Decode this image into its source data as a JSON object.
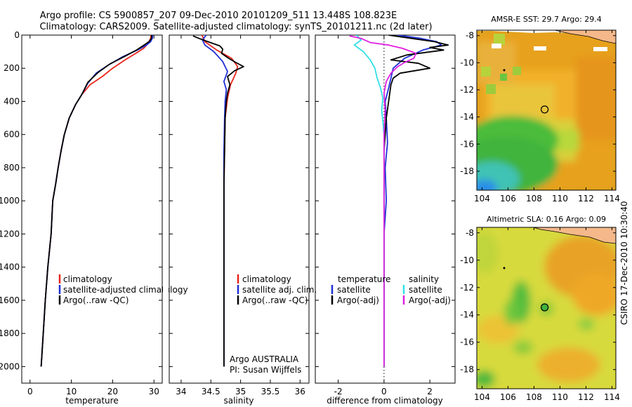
{
  "title": {
    "line1": "Argo profile: CS 5900857_207 09-Dec-2010 20101209_511 13.448S 108.823E",
    "line2": "Climatology: CARS2009. Satellite-adjusted climatology: synTS_20101211.nc (2d later)"
  },
  "side_label": "CSIRO 17-Dec-2010 10:30:40",
  "colors": {
    "climatology": "#e8251c",
    "satellite": "#1f2fd6",
    "argo": "#000000",
    "sat_salinity": "#2fe0e8",
    "argo_salinity": "#e020e0",
    "depth_marker": "#000000",
    "land": "#f5b88a"
  },
  "chart_data": [
    {
      "id": "temperature",
      "type": "line",
      "xlabel": "temperature",
      "ylabel": "",
      "xlim": [
        -2,
        32
      ],
      "ylim": [
        2100,
        0
      ],
      "xticks": [
        0,
        10,
        20,
        30
      ],
      "yticks": [
        0,
        200,
        400,
        600,
        800,
        1000,
        1200,
        1400,
        1600,
        1800,
        2000
      ],
      "legend": [
        "climatology",
        "satellite-adjusted climatology",
        "Argo(..raw -QC)"
      ],
      "series": [
        {
          "name": "climatology",
          "color": "#e8251c",
          "points": [
            [
              29.3,
              0
            ],
            [
              29.2,
              20
            ],
            [
              28.6,
              50
            ],
            [
              27.5,
              80
            ],
            [
              25.6,
              110
            ],
            [
              23,
              150
            ],
            [
              20,
              200
            ],
            [
              17.5,
              250
            ],
            [
              14.5,
              300
            ],
            [
              12.5,
              360
            ],
            [
              11,
              420
            ],
            [
              9.5,
              500
            ],
            [
              8.3,
              600
            ],
            [
              7.5,
              700
            ],
            [
              6.8,
              800
            ],
            [
              6.2,
              900
            ],
            [
              5.5,
              1000
            ],
            [
              5.1,
              1200
            ],
            [
              4.3,
              1400
            ],
            [
              3.7,
              1600
            ],
            [
              3.2,
              1800
            ],
            [
              2.7,
              2000
            ]
          ]
        },
        {
          "name": "satellite-adjusted climatology",
          "color": "#1f2fd6",
          "points": [
            [
              29.7,
              0
            ],
            [
              29.6,
              20
            ],
            [
              29.2,
              40
            ],
            [
              28.2,
              60
            ],
            [
              26,
              90
            ],
            [
              22.5,
              130
            ],
            [
              19,
              180
            ],
            [
              16,
              230
            ],
            [
              14,
              290
            ],
            [
              12.5,
              360
            ],
            [
              11,
              420
            ],
            [
              9.5,
              500
            ],
            [
              8.3,
              600
            ],
            [
              7.5,
              700
            ],
            [
              6.8,
              800
            ],
            [
              6.2,
              900
            ],
            [
              5.5,
              1000
            ],
            [
              5.1,
              1200
            ],
            [
              4.3,
              1400
            ],
            [
              3.7,
              1600
            ],
            [
              3.2,
              1800
            ],
            [
              2.7,
              2000
            ]
          ]
        },
        {
          "name": "Argo(..raw -QC)",
          "color": "#000000",
          "points": [
            [
              29.4,
              0
            ],
            [
              29.4,
              20
            ],
            [
              28.8,
              40
            ],
            [
              27.6,
              60
            ],
            [
              25.8,
              90
            ],
            [
              22.8,
              130
            ],
            [
              19.3,
              175
            ],
            [
              16.5,
              225
            ],
            [
              14,
              285
            ],
            [
              12.5,
              360
            ],
            [
              11,
              420
            ],
            [
              9.5,
              500
            ],
            [
              8.3,
              600
            ],
            [
              7.5,
              700
            ],
            [
              6.8,
              800
            ],
            [
              6.2,
              900
            ],
            [
              5.5,
              1000
            ],
            [
              5.1,
              1200
            ],
            [
              4.3,
              1400
            ],
            [
              3.7,
              1600
            ],
            [
              3.2,
              1800
            ],
            [
              2.7,
              2000
            ]
          ]
        }
      ]
    },
    {
      "id": "salinity",
      "type": "line",
      "xlabel": "salinity",
      "ylabel": "",
      "xlim": [
        33.8,
        36.15
      ],
      "ylim": [
        2100,
        0
      ],
      "xticks": [
        34,
        34.5,
        35,
        35.5,
        36
      ],
      "yticks": [
        0,
        200,
        400,
        600,
        800,
        1000,
        1200,
        1400,
        1600,
        1800,
        2000
      ],
      "legend": [
        "climatology",
        "satellite adj. clim.",
        "Argo(..raw -QC)"
      ],
      "annotations": [
        "Argo AUSTRALIA",
        "PI: Susan Wijffels"
      ],
      "series": [
        {
          "name": "climatology",
          "color": "#e8251c",
          "points": [
            [
              34.35,
              0
            ],
            [
              34.4,
              40
            ],
            [
              34.6,
              90
            ],
            [
              34.85,
              140
            ],
            [
              34.95,
              190
            ],
            [
              34.92,
              230
            ],
            [
              34.83,
              300
            ],
            [
              34.78,
              380
            ],
            [
              34.74,
              500
            ],
            [
              34.73,
              700
            ],
            [
              34.72,
              900
            ],
            [
              34.72,
              1100
            ],
            [
              34.72,
              1300
            ],
            [
              34.72,
              1500
            ],
            [
              34.72,
              1700
            ],
            [
              34.72,
              1900
            ],
            [
              34.72,
              2000
            ]
          ]
        },
        {
          "name": "satellite adj. clim.",
          "color": "#1f2fd6",
          "points": [
            [
              34.42,
              0
            ],
            [
              34.36,
              30
            ],
            [
              34.4,
              60
            ],
            [
              34.55,
              100
            ],
            [
              34.7,
              160
            ],
            [
              34.78,
              220
            ],
            [
              34.72,
              280
            ],
            [
              34.76,
              330
            ],
            [
              34.74,
              400
            ],
            [
              34.73,
              500
            ],
            [
              34.72,
              700
            ],
            [
              34.72,
              900
            ],
            [
              34.72,
              1100
            ],
            [
              34.72,
              1300
            ],
            [
              34.72,
              1500
            ],
            [
              34.72,
              1700
            ],
            [
              34.72,
              1900
            ],
            [
              34.72,
              2000
            ]
          ]
        },
        {
          "name": "Argo(..raw -QC)",
          "color": "#000000",
          "points": [
            [
              34.2,
              5
            ],
            [
              34.3,
              20
            ],
            [
              34.45,
              40
            ],
            [
              34.65,
              65
            ],
            [
              34.7,
              85
            ],
            [
              34.68,
              110
            ],
            [
              34.8,
              140
            ],
            [
              34.92,
              165
            ],
            [
              35.05,
              190
            ],
            [
              34.9,
              215
            ],
            [
              34.78,
              250
            ],
            [
              34.82,
              300
            ],
            [
              34.78,
              350
            ],
            [
              34.76,
              400
            ],
            [
              34.74,
              500
            ],
            [
              34.73,
              700
            ],
            [
              34.72,
              900
            ],
            [
              34.72,
              1100
            ],
            [
              34.72,
              1300
            ],
            [
              34.72,
              1500
            ],
            [
              34.72,
              1700
            ],
            [
              34.72,
              1900
            ],
            [
              34.72,
              2000
            ]
          ]
        }
      ]
    },
    {
      "id": "difference",
      "type": "line",
      "xlabel": "difference from climatology",
      "ylabel": "",
      "xlim": [
        -3.0,
        3.1
      ],
      "ylim": [
        2100,
        0
      ],
      "xticks": [
        -2,
        0,
        2
      ],
      "yticks": [
        0,
        200,
        400,
        600,
        800,
        1000,
        1200,
        1400,
        1600,
        1800,
        2000
      ],
      "legend_headers": [
        "temperature",
        "salinity"
      ],
      "legend": [
        "satellite",
        "Argo(-adj)",
        "satellite",
        "Argo(-adj)"
      ],
      "series": [
        {
          "name": "temperature satellite",
          "color": "#1f2fd6",
          "points": [
            [
              0.6,
              0
            ],
            [
              1.6,
              20
            ],
            [
              2.3,
              40
            ],
            [
              2.5,
              60
            ],
            [
              1.7,
              90
            ],
            [
              0.9,
              140
            ],
            [
              0.4,
              200
            ],
            [
              0.3,
              260
            ],
            [
              0.2,
              320
            ],
            [
              0.05,
              400
            ],
            [
              0.1,
              500
            ],
            [
              0.15,
              650
            ],
            [
              0.05,
              800
            ],
            [
              0.1,
              1000
            ],
            [
              0,
              1200
            ],
            [
              0,
              1400
            ],
            [
              0,
              1600
            ],
            [
              0,
              1800
            ],
            [
              0,
              2000
            ]
          ]
        },
        {
          "name": "temperature Argo(-adj)",
          "color": "#000000",
          "points": [
            [
              0.2,
              0
            ],
            [
              1.2,
              20
            ],
            [
              2.2,
              40
            ],
            [
              2.8,
              60
            ],
            [
              2.0,
              75
            ],
            [
              2.6,
              90
            ],
            [
              1.0,
              120
            ],
            [
              0.3,
              150
            ],
            [
              1.5,
              170
            ],
            [
              2.0,
              200
            ],
            [
              0.7,
              230
            ],
            [
              0.4,
              260
            ],
            [
              0.3,
              300
            ],
            [
              0.2,
              400
            ],
            [
              0.1,
              500
            ],
            [
              0,
              700
            ],
            [
              0,
              1000
            ],
            [
              0,
              1300
            ],
            [
              0,
              1600
            ],
            [
              0,
              1900
            ],
            [
              0,
              2000
            ]
          ]
        },
        {
          "name": "salinity satellite",
          "color": "#2fe0e8",
          "points": [
            [
              -1.2,
              0
            ],
            [
              -1.0,
              30
            ],
            [
              -1.3,
              60
            ],
            [
              -0.9,
              100
            ],
            [
              -0.6,
              150
            ],
            [
              -0.4,
              200
            ],
            [
              -0.3,
              260
            ],
            [
              -0.15,
              320
            ],
            [
              -0.05,
              380
            ],
            [
              -0.1,
              450
            ],
            [
              0,
              600
            ],
            [
              0,
              800
            ],
            [
              0,
              1000
            ],
            [
              0,
              1200
            ],
            [
              0,
              1400
            ],
            [
              0,
              1600
            ],
            [
              0,
              1800
            ],
            [
              0,
              2000
            ]
          ]
        },
        {
          "name": "salinity Argo(-adj)",
          "color": "#e020e0",
          "points": [
            [
              -1.5,
              5
            ],
            [
              -1.0,
              20
            ],
            [
              -0.6,
              45
            ],
            [
              0.2,
              60
            ],
            [
              0.8,
              80
            ],
            [
              1.4,
              110
            ],
            [
              1.3,
              140
            ],
            [
              0.9,
              165
            ],
            [
              0.6,
              190
            ],
            [
              0.3,
              230
            ],
            [
              0.1,
              280
            ],
            [
              0,
              350
            ],
            [
              0.05,
              450
            ],
            [
              0,
              600
            ],
            [
              0,
              800
            ],
            [
              0,
              1000
            ],
            [
              0,
              1200
            ],
            [
              0,
              1400
            ],
            [
              0,
              1600
            ],
            [
              0,
              1800
            ],
            [
              0,
              2000
            ]
          ]
        }
      ]
    },
    {
      "id": "sst_map",
      "type": "heatmap",
      "title": "AMSR-E SST: 29.7 Argo: 29.4",
      "xlim": [
        103.6,
        114.3
      ],
      "ylim": [
        -19.4,
        -7.6
      ],
      "xticks": [
        104,
        106,
        108,
        110,
        112,
        114
      ],
      "yticks": [
        -8,
        -10,
        -12,
        -14,
        -16,
        -18
      ],
      "marker": {
        "lon": 108.823,
        "lat": -13.448
      }
    },
    {
      "id": "sla_map",
      "type": "heatmap",
      "title": "Altimetric SLA: 0.16 Argo: 0.09",
      "xlim": [
        103.6,
        114.3
      ],
      "ylim": [
        -19.4,
        -7.6
      ],
      "xticks": [
        104,
        106,
        108,
        110,
        112,
        114
      ],
      "yticks": [
        -8,
        -10,
        -12,
        -14,
        -16,
        -18
      ],
      "marker": {
        "lon": 108.823,
        "lat": -13.448
      }
    }
  ]
}
